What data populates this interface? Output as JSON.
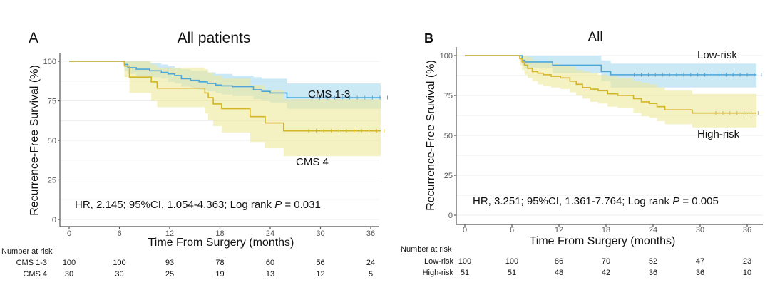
{
  "chart_data": [
    {
      "type": "line",
      "subtype": "kaplan-meier",
      "panel_label": "A",
      "title": "All patients",
      "xlabel": "Time From Surgery (months)",
      "ylabel": "Recurrence-Free Survival (%)",
      "xlim": [
        -1,
        38
      ],
      "ylim": [
        0,
        100
      ],
      "xticks": [
        "0",
        "6",
        "12",
        "18",
        "24",
        "30",
        "36"
      ],
      "yticks": [
        "0",
        "25",
        "50",
        "75",
        "100"
      ],
      "grid": true,
      "annotation": {
        "pre": "HR, 2.145; 95%CI, 1.054-4.363; Log rank ",
        "p": "P",
        "post": " = 0.031"
      },
      "series": [
        {
          "name": "CMS 1-3",
          "color": "#4ea6d8",
          "ribbon": "#a9d8ee",
          "x": [
            0,
            6.6,
            7.0,
            8.0,
            9.6,
            11.0,
            11.8,
            12.6,
            13.4,
            14.5,
            15.5,
            16.5,
            17.5,
            18.2,
            19.5,
            22.0,
            23.0,
            24.0,
            26.0,
            37.2
          ],
          "y": [
            100,
            98,
            96,
            95,
            94,
            93,
            92,
            91,
            89,
            88,
            87,
            86,
            85,
            84.5,
            84,
            82,
            81,
            80,
            77,
            77
          ],
          "lower": [
            100,
            94,
            92,
            91,
            90,
            89,
            87,
            86,
            84,
            83,
            82,
            81,
            80,
            79,
            78,
            76,
            75,
            74,
            70,
            70
          ],
          "upper": [
            100,
            100,
            100,
            100,
            99,
            98,
            97,
            96,
            95,
            94,
            94,
            93,
            92,
            92,
            91,
            90,
            89,
            89,
            86,
            86
          ],
          "label_pos": "top-right"
        },
        {
          "name": "CMS 4",
          "color": "#d4b52a",
          "ribbon": "#ece79a",
          "x": [
            0,
            6.6,
            7.2,
            9.8,
            10.5,
            16.2,
            16.6,
            17.2,
            18.2,
            21.6,
            23.4,
            25.6,
            37.2
          ],
          "y": [
            100,
            97,
            90,
            87,
            83,
            80,
            77,
            73,
            70,
            65,
            61,
            56,
            56
          ],
          "lower": [
            100,
            90,
            80,
            75,
            71,
            67,
            63,
            59,
            55,
            49,
            45,
            40,
            40
          ],
          "upper": [
            100,
            100,
            100,
            98,
            96,
            95,
            93,
            91,
            89,
            85,
            82,
            76,
            76
          ],
          "label_pos": "bottom-right"
        }
      ],
      "risk_table": {
        "title": "Number at risk",
        "times": [
          0,
          6,
          12,
          18,
          24,
          30,
          36
        ],
        "rows": [
          {
            "label": "CMS 1-3",
            "values": [
              "100",
              "100",
              "93",
              "78",
              "60",
              "56",
              "24"
            ]
          },
          {
            "label": "CMS 4",
            "values": [
              "30",
              "30",
              "25",
              "19",
              "13",
              "12",
              "5"
            ]
          }
        ]
      }
    },
    {
      "type": "line",
      "subtype": "kaplan-meier",
      "panel_label": "B",
      "title": "All",
      "xlabel": "Time From Surgery (months)",
      "ylabel": "Recurrence-Free Sruvival (%)",
      "xlim": [
        -1,
        38
      ],
      "ylim": [
        0,
        100
      ],
      "xticks": [
        "0",
        "6",
        "12",
        "18",
        "24",
        "30",
        "36"
      ],
      "yticks": [
        "0",
        "25",
        "50",
        "75",
        "100"
      ],
      "grid": true,
      "annotation": {
        "pre": "HR, 3.251; 95%CI, 1.361-7.764; Log rank ",
        "p": "P",
        "post": " = 0.005"
      },
      "series": [
        {
          "name": "Low-risk",
          "color": "#4ea6d8",
          "ribbon": "#a9d8ee",
          "x": [
            0,
            7.3,
            7.6,
            11.2,
            17.4,
            18.6,
            37.2
          ],
          "y": [
            100,
            97,
            96,
            94,
            90,
            88,
            88
          ],
          "lower": [
            100,
            94,
            92,
            89,
            84,
            80,
            80
          ],
          "upper": [
            100,
            100,
            100,
            100,
            97,
            95,
            95
          ],
          "label_pos": "top-right"
        },
        {
          "name": "High-risk",
          "color": "#d4b52a",
          "ribbon": "#ece79a",
          "x": [
            0,
            7.0,
            7.3,
            7.6,
            8.0,
            8.6,
            9.3,
            10.0,
            11.0,
            12.2,
            13.4,
            14.2,
            15.0,
            16.0,
            17.0,
            18.2,
            19.5,
            21.5,
            22.5,
            23.5,
            24.5,
            25.5,
            29.0,
            37.2
          ],
          "y": [
            100,
            98,
            96,
            94,
            92,
            90,
            89,
            88,
            87,
            86,
            84,
            82,
            80,
            79,
            78,
            76,
            75,
            73,
            71,
            70,
            68,
            66,
            64,
            64
          ],
          "lower": [
            100,
            94,
            91,
            88,
            86,
            84,
            82,
            81,
            80,
            79,
            77,
            75,
            73,
            71,
            70,
            68,
            67,
            64,
            62,
            61,
            59,
            57,
            55,
            55
          ],
          "upper": [
            100,
            100,
            100,
            100,
            99,
            97,
            96,
            96,
            95,
            94,
            93,
            91,
            90,
            89,
            88,
            87,
            86,
            84,
            83,
            82,
            80,
            78,
            76,
            76
          ],
          "label_pos": "bottom-right"
        }
      ],
      "risk_table": {
        "title": "Number at risk",
        "times": [
          0,
          6,
          12,
          18,
          24,
          30,
          36
        ],
        "rows": [
          {
            "label": "Low-risk",
            "values": [
              "100",
              "100",
              "86",
              "70",
              "52",
              "47",
              "23"
            ]
          },
          {
            "label": "High-risk",
            "values": [
              "51",
              "51",
              "48",
              "42",
              "36",
              "36",
              "10"
            ]
          }
        ]
      }
    }
  ]
}
